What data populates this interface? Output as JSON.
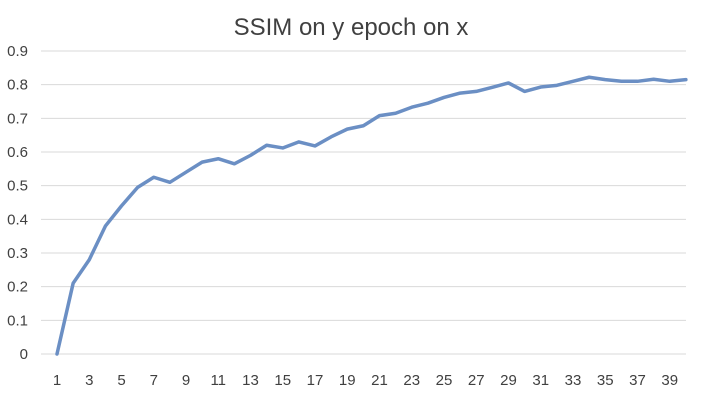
{
  "chart_data": {
    "type": "line",
    "title": "SSIM on y epoch on x",
    "xlabel": "",
    "ylabel": "",
    "x": [
      1,
      2,
      3,
      4,
      5,
      6,
      7,
      8,
      9,
      10,
      11,
      12,
      13,
      14,
      15,
      16,
      17,
      18,
      19,
      20,
      21,
      22,
      23,
      24,
      25,
      26,
      27,
      28,
      29,
      30,
      31,
      32,
      33,
      34,
      35,
      36,
      37,
      38,
      39,
      40
    ],
    "x_tick_labels": [
      "1",
      "3",
      "5",
      "7",
      "9",
      "11",
      "13",
      "15",
      "17",
      "19",
      "21",
      "23",
      "25",
      "27",
      "29",
      "31",
      "33",
      "35",
      "37",
      "39"
    ],
    "y_tick_labels": [
      "0",
      "0.1",
      "0.2",
      "0.3",
      "0.4",
      "0.5",
      "0.6",
      "0.7",
      "0.8",
      "0.9"
    ],
    "ylim": [
      0,
      0.9
    ],
    "grid": true,
    "legend": "none",
    "series": [
      {
        "color": "#6b8fc4",
        "values": [
          0.0,
          0.21,
          0.28,
          0.38,
          0.44,
          0.495,
          0.525,
          0.51,
          0.54,
          0.57,
          0.58,
          0.565,
          0.59,
          0.62,
          0.612,
          0.63,
          0.618,
          0.645,
          0.668,
          0.678,
          0.708,
          0.715,
          0.733,
          0.745,
          0.762,
          0.775,
          0.78,
          0.792,
          0.805,
          0.78,
          0.793,
          0.798,
          0.81,
          0.822,
          0.815,
          0.81,
          0.81,
          0.816,
          0.81,
          0.815
        ]
      }
    ]
  }
}
